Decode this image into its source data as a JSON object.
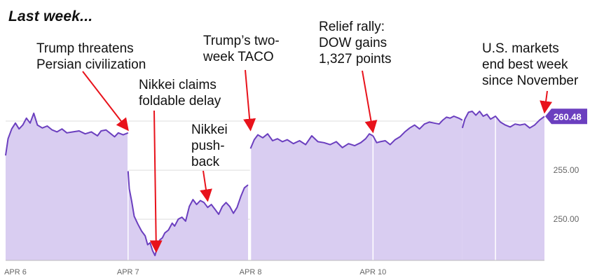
{
  "title": "Last week...",
  "chart_data": {
    "type": "area",
    "series_color": "#6b3fbf",
    "fill_color": "#d9cdf1",
    "annotation_color": "#e8121b",
    "ylim": [
      245.8,
      261.5
    ],
    "xlim": [
      0,
      4.4
    ],
    "x_ticks": [
      {
        "x": 0,
        "label": "APR 6"
      },
      {
        "x": 1,
        "label": "APR 7"
      },
      {
        "x": 2,
        "label": "APR 8"
      },
      {
        "x": 3,
        "label": "APR 10"
      }
    ],
    "y_ticks": [
      {
        "value": 250,
        "label": "250.00"
      },
      {
        "value": 255,
        "label": "255.00"
      }
    ],
    "gridlines": [
      250,
      255,
      260
    ],
    "session_breaks": [
      1,
      2,
      3,
      4
    ],
    "segments": [
      [
        [
          0,
          256.5
        ],
        [
          0.02,
          258.2
        ],
        [
          0.05,
          259.2
        ],
        [
          0.08,
          259.8
        ],
        [
          0.11,
          259.2
        ],
        [
          0.14,
          259.6
        ],
        [
          0.17,
          260.3
        ],
        [
          0.2,
          259.8
        ],
        [
          0.23,
          260.8
        ],
        [
          0.26,
          259.6
        ],
        [
          0.3,
          259.3
        ],
        [
          0.34,
          259.5
        ],
        [
          0.38,
          259.1
        ],
        [
          0.42,
          258.9
        ],
        [
          0.46,
          259.2
        ],
        [
          0.5,
          258.8
        ],
        [
          0.55,
          258.9
        ],
        [
          0.6,
          259.0
        ],
        [
          0.65,
          258.7
        ],
        [
          0.7,
          258.9
        ],
        [
          0.75,
          258.5
        ],
        [
          0.78,
          259.0
        ],
        [
          0.82,
          259.1
        ],
        [
          0.86,
          258.7
        ],
        [
          0.89,
          258.4
        ],
        [
          0.92,
          258.8
        ],
        [
          0.96,
          258.6
        ],
        [
          1.0,
          258.8
        ]
      ],
      [
        [
          1.0,
          254.9
        ],
        [
          1.01,
          253.1
        ],
        [
          1.03,
          251.8
        ],
        [
          1.05,
          250.3
        ],
        [
          1.08,
          249.5
        ],
        [
          1.11,
          248.8
        ],
        [
          1.14,
          248.3
        ],
        [
          1.16,
          247.4
        ],
        [
          1.18,
          247.6
        ],
        [
          1.2,
          246.8
        ],
        [
          1.22,
          246.3
        ],
        [
          1.24,
          247.2
        ],
        [
          1.26,
          247.9
        ],
        [
          1.28,
          248.1
        ],
        [
          1.3,
          248.6
        ],
        [
          1.33,
          248.9
        ],
        [
          1.36,
          249.6
        ],
        [
          1.38,
          249.3
        ],
        [
          1.41,
          250.0
        ],
        [
          1.44,
          250.2
        ],
        [
          1.47,
          249.8
        ],
        [
          1.5,
          251.3
        ],
        [
          1.53,
          252.0
        ],
        [
          1.56,
          251.5
        ],
        [
          1.59,
          251.9
        ],
        [
          1.62,
          251.7
        ],
        [
          1.65,
          251.2
        ],
        [
          1.68,
          251.5
        ],
        [
          1.71,
          251.0
        ],
        [
          1.74,
          250.5
        ],
        [
          1.77,
          251.3
        ],
        [
          1.8,
          251.7
        ],
        [
          1.83,
          251.3
        ],
        [
          1.86,
          250.6
        ],
        [
          1.89,
          251.2
        ],
        [
          1.92,
          252.3
        ],
        [
          1.95,
          253.2
        ],
        [
          1.98,
          253.5
        ]
      ],
      [
        [
          2.0,
          257.2
        ],
        [
          2.03,
          258.1
        ],
        [
          2.06,
          258.6
        ],
        [
          2.1,
          258.3
        ],
        [
          2.14,
          258.7
        ],
        [
          2.18,
          258.0
        ],
        [
          2.22,
          258.2
        ],
        [
          2.26,
          257.9
        ],
        [
          2.3,
          258.1
        ],
        [
          2.35,
          257.7
        ],
        [
          2.4,
          258.0
        ],
        [
          2.45,
          257.6
        ],
        [
          2.5,
          258.5
        ],
        [
          2.55,
          257.9
        ],
        [
          2.6,
          257.8
        ],
        [
          2.65,
          257.6
        ],
        [
          2.7,
          257.9
        ],
        [
          2.75,
          257.3
        ],
        [
          2.8,
          257.7
        ],
        [
          2.85,
          257.5
        ],
        [
          2.9,
          257.8
        ],
        [
          2.94,
          258.2
        ],
        [
          2.97,
          258.7
        ],
        [
          3.0,
          258.5
        ]
      ],
      [
        [
          3.0,
          258.5
        ],
        [
          3.03,
          257.8
        ],
        [
          3.06,
          257.9
        ],
        [
          3.1,
          258.0
        ],
        [
          3.14,
          257.6
        ],
        [
          3.18,
          258.1
        ],
        [
          3.22,
          258.4
        ],
        [
          3.26,
          258.9
        ],
        [
          3.3,
          259.3
        ],
        [
          3.34,
          259.6
        ],
        [
          3.38,
          259.2
        ],
        [
          3.42,
          259.7
        ],
        [
          3.46,
          259.9
        ],
        [
          3.5,
          259.8
        ],
        [
          3.54,
          259.7
        ],
        [
          3.57,
          260.1
        ],
        [
          3.6,
          260.4
        ],
        [
          3.63,
          260.3
        ],
        [
          3.66,
          260.5
        ],
        [
          3.7,
          260.3
        ],
        [
          3.73,
          260.1
        ]
      ],
      [
        [
          3.73,
          259.3
        ],
        [
          3.75,
          260.2
        ],
        [
          3.78,
          260.9
        ],
        [
          3.81,
          261.0
        ],
        [
          3.84,
          260.6
        ],
        [
          3.87,
          261.0
        ],
        [
          3.9,
          260.5
        ],
        [
          3.93,
          260.7
        ],
        [
          3.96,
          260.2
        ],
        [
          4.0,
          260.5
        ],
        [
          4.04,
          259.9
        ],
        [
          4.08,
          259.6
        ],
        [
          4.12,
          259.4
        ],
        [
          4.16,
          259.7
        ],
        [
          4.2,
          259.6
        ],
        [
          4.24,
          259.7
        ],
        [
          4.28,
          259.3
        ],
        [
          4.32,
          259.6
        ],
        [
          4.36,
          260.1
        ],
        [
          4.4,
          260.48
        ]
      ]
    ],
    "last_value": 260.48,
    "last_value_label": "260.48"
  },
  "annotations": [
    {
      "text": "Trump threatens\nPersian civilization",
      "x": 1.0,
      "y": 258.8
    },
    {
      "text": "Nikkei claims\nfoldable delay",
      "x": 1.23,
      "y": 246.4
    },
    {
      "text": "Nikkei\npush-\nback",
      "x": 1.65,
      "y": 251.6
    },
    {
      "text": "Trump’s two-\nweek TACO",
      "x": 2.0,
      "y": 258.8
    },
    {
      "text": "Relief rally:\nDOW gains\n1,327 points",
      "x": 3.0,
      "y": 258.6
    },
    {
      "text": "U.S. markets\nend best week\nsince November",
      "x": 4.4,
      "y": 260.6
    }
  ]
}
